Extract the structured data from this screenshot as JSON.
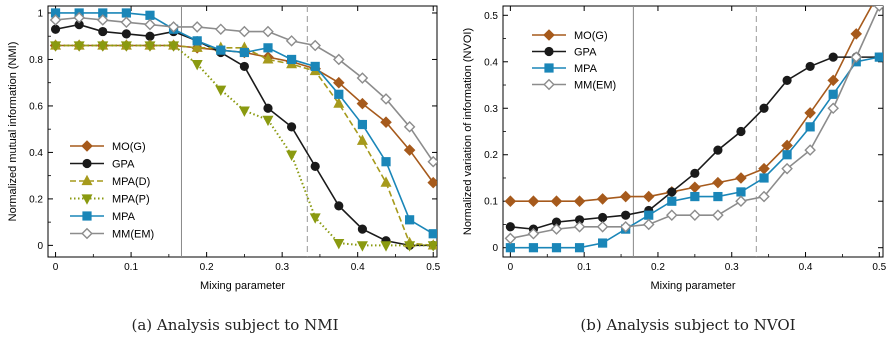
{
  "chart_data": [
    {
      "type": "line",
      "xlabel": "Mixing parameter",
      "ylabel": "Normalized mutual information (NMI)",
      "caption": "(a) Analysis subject to NMI",
      "xlim": [
        -0.01,
        0.505
      ],
      "ylim": [
        -0.05,
        1.03
      ],
      "xticks": [
        0,
        0.1,
        0.2,
        0.3,
        0.4,
        0.5
      ],
      "xtick_labels": [
        "0",
        "0.1",
        "0.2",
        "0.3",
        "0.4",
        "0.5"
      ],
      "yticks": [
        0,
        0.2,
        0.4,
        0.6,
        0.8,
        1
      ],
      "ytick_labels": [
        "0",
        "0.2",
        "0.4",
        "0.6",
        "0.8",
        "1"
      ],
      "grid": false,
      "legend_position": "bottom-left",
      "vlines": [
        {
          "x": 0.1667,
          "style": "solid",
          "color": "#888888"
        },
        {
          "x": 0.3333,
          "style": "dashed",
          "color": "#999999"
        }
      ],
      "x": [
        0,
        0.03125,
        0.0625,
        0.09375,
        0.125,
        0.15625,
        0.1875,
        0.21875,
        0.25,
        0.28125,
        0.3125,
        0.34375,
        0.375,
        0.40625,
        0.4375,
        0.46875,
        0.5
      ],
      "series": [
        {
          "name": "MO(G)",
          "color": "#a65a1c",
          "marker": "diamond",
          "filled": true,
          "dash": "solid",
          "values": [
            0.86,
            0.86,
            0.86,
            0.86,
            0.86,
            0.86,
            0.85,
            0.84,
            0.83,
            0.81,
            0.79,
            0.76,
            0.7,
            0.61,
            0.53,
            0.41,
            0.27
          ]
        },
        {
          "name": "GPA",
          "color": "#1a1a1a",
          "marker": "circle",
          "filled": true,
          "dash": "solid",
          "values": [
            0.93,
            0.95,
            0.92,
            0.91,
            0.9,
            0.92,
            0.88,
            0.83,
            0.77,
            0.59,
            0.51,
            0.34,
            0.17,
            0.07,
            0.02,
            0.0,
            0.0
          ]
        },
        {
          "name": "MPA(D)",
          "color": "#a69a1c",
          "marker": "triangle-up",
          "filled": true,
          "dash": "dashed",
          "values": [
            0.86,
            0.86,
            0.86,
            0.86,
            0.86,
            0.86,
            0.85,
            0.85,
            0.85,
            0.8,
            0.78,
            0.75,
            0.61,
            0.45,
            0.27,
            0.01,
            0.0
          ]
        },
        {
          "name": "MPA(P)",
          "color": "#8a9a10",
          "marker": "triangle-down",
          "filled": true,
          "dash": "dotted",
          "values": [
            0.86,
            0.86,
            0.86,
            0.86,
            0.86,
            0.86,
            0.78,
            0.67,
            0.58,
            0.54,
            0.39,
            0.12,
            0.01,
            0.0,
            0.0,
            0.0,
            0.0
          ]
        },
        {
          "name": "MPA",
          "color": "#1a86b8",
          "marker": "square",
          "filled": true,
          "dash": "solid",
          "values": [
            1.0,
            1.0,
            1.0,
            1.0,
            0.99,
            0.93,
            0.88,
            0.84,
            0.83,
            0.85,
            0.8,
            0.77,
            0.65,
            0.52,
            0.36,
            0.11,
            0.05
          ]
        },
        {
          "name": "MM(EM)",
          "color": "#8c8c8c",
          "marker": "diamond",
          "filled": false,
          "dash": "solid",
          "values": [
            0.97,
            0.98,
            0.97,
            0.96,
            0.95,
            0.94,
            0.94,
            0.93,
            0.92,
            0.92,
            0.88,
            0.86,
            0.8,
            0.72,
            0.63,
            0.51,
            0.36
          ]
        }
      ]
    },
    {
      "type": "line",
      "xlabel": "Mixing parameter",
      "ylabel": "Normalized variation of information (NVOI)",
      "caption": "(b) Analysis subject to NVOI",
      "xlim": [
        -0.01,
        0.505
      ],
      "ylim": [
        -0.02,
        0.52
      ],
      "xticks": [
        0,
        0.1,
        0.2,
        0.3,
        0.4,
        0.5
      ],
      "xtick_labels": [
        "0",
        "0.1",
        "0.2",
        "0.3",
        "0.4",
        "0.5"
      ],
      "yticks": [
        0,
        0.1,
        0.2,
        0.3,
        0.4,
        0.5
      ],
      "ytick_labels": [
        "0",
        "0.1",
        "0.2",
        "0.3",
        "0.4",
        "0.5"
      ],
      "grid": false,
      "legend_position": "top-left",
      "vlines": [
        {
          "x": 0.1667,
          "style": "solid",
          "color": "#888888"
        },
        {
          "x": 0.3333,
          "style": "dashed",
          "color": "#999999"
        }
      ],
      "x": [
        0,
        0.03125,
        0.0625,
        0.09375,
        0.125,
        0.15625,
        0.1875,
        0.21875,
        0.25,
        0.28125,
        0.3125,
        0.34375,
        0.375,
        0.40625,
        0.4375,
        0.46875,
        0.5
      ],
      "series": [
        {
          "name": "MO(G)",
          "color": "#a65a1c",
          "marker": "diamond",
          "filled": true,
          "dash": "solid",
          "values": [
            0.1,
            0.1,
            0.1,
            0.1,
            0.105,
            0.11,
            0.11,
            0.12,
            0.13,
            0.14,
            0.15,
            0.17,
            0.22,
            0.29,
            0.36,
            0.46,
            0.55
          ]
        },
        {
          "name": "GPA",
          "color": "#1a1a1a",
          "marker": "circle",
          "filled": true,
          "dash": "solid",
          "values": [
            0.045,
            0.04,
            0.055,
            0.06,
            0.065,
            0.07,
            0.08,
            0.12,
            0.16,
            0.21,
            0.25,
            0.3,
            0.36,
            0.39,
            0.41,
            0.41,
            0.41
          ]
        },
        {
          "name": "MPA",
          "color": "#1a86b8",
          "marker": "square",
          "filled": true,
          "dash": "solid",
          "values": [
            0.0,
            0.0,
            0.0,
            0.0,
            0.01,
            0.04,
            0.07,
            0.1,
            0.11,
            0.11,
            0.12,
            0.15,
            0.2,
            0.26,
            0.33,
            0.4,
            0.41
          ]
        },
        {
          "name": "MM(EM)",
          "color": "#8c8c8c",
          "marker": "diamond",
          "filled": false,
          "dash": "solid",
          "values": [
            0.02,
            0.03,
            0.04,
            0.045,
            0.045,
            0.045,
            0.05,
            0.07,
            0.07,
            0.07,
            0.1,
            0.11,
            0.17,
            0.21,
            0.3,
            0.41,
            0.52
          ]
        }
      ]
    }
  ]
}
